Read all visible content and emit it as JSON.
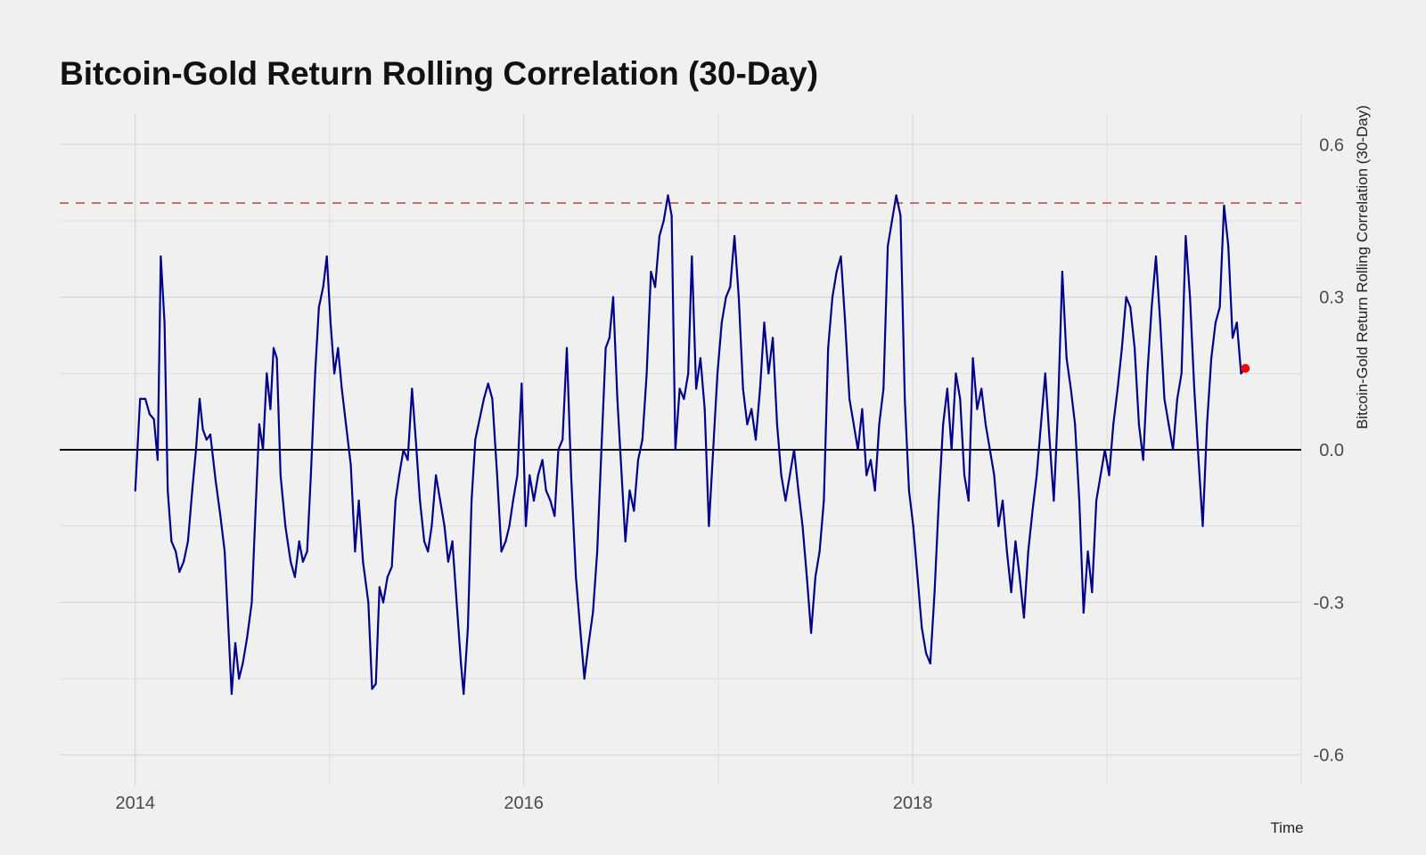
{
  "chart_data": {
    "type": "line",
    "title": "Bitcoin-Gold Return Rolling Correlation (30-Day)",
    "xlabel": "Time",
    "ylabel": "Bitcoin-Gold Return Rolling Correlation (30-Day)",
    "x_ticks": [
      "2014",
      "2016",
      "2018"
    ],
    "y_ticks": [
      "0.6",
      "0.3",
      "0.0",
      "-0.3",
      "-0.6"
    ],
    "y_tick_values": [
      0.6,
      0.3,
      0.0,
      -0.3,
      -0.6
    ],
    "xlim": [
      "2013-08-12",
      "2020-01-01"
    ],
    "ylim": [
      -0.66,
      0.66
    ],
    "grid": true,
    "y_axis_position": "right",
    "reference_lines": [
      {
        "name": "zero",
        "y": 0.0,
        "style": "solid",
        "color": "#000000"
      },
      {
        "name": "max",
        "y": 0.485,
        "style": "dashed",
        "color": "#c0504d"
      }
    ],
    "colors": {
      "line": "#00008b",
      "last_point": "#ff0000",
      "background": "#f0f0f0"
    },
    "series": [
      {
        "points": [
          [
            "2014-01-01",
            -0.08
          ],
          [
            "2014-01-10",
            0.1
          ],
          [
            "2014-01-20",
            0.1
          ],
          [
            "2014-01-28",
            0.07
          ],
          [
            "2014-02-05",
            0.06
          ],
          [
            "2014-02-12",
            -0.02
          ],
          [
            "2014-02-18",
            0.38
          ],
          [
            "2014-02-25",
            0.25
          ],
          [
            "2014-03-03",
            -0.08
          ],
          [
            "2014-03-10",
            -0.18
          ],
          [
            "2014-03-18",
            -0.2
          ],
          [
            "2014-03-25",
            -0.24
          ],
          [
            "2014-04-02",
            -0.22
          ],
          [
            "2014-04-10",
            -0.18
          ],
          [
            "2014-04-18",
            -0.08
          ],
          [
            "2014-04-25",
            0.0
          ],
          [
            "2014-05-02",
            0.1
          ],
          [
            "2014-05-08",
            0.04
          ],
          [
            "2014-05-15",
            0.02
          ],
          [
            "2014-05-22",
            0.03
          ],
          [
            "2014-06-01",
            -0.06
          ],
          [
            "2014-06-10",
            -0.13
          ],
          [
            "2014-06-18",
            -0.2
          ],
          [
            "2014-06-24",
            -0.33
          ],
          [
            "2014-07-01",
            -0.48
          ],
          [
            "2014-07-08",
            -0.38
          ],
          [
            "2014-07-15",
            -0.45
          ],
          [
            "2014-07-22",
            -0.42
          ],
          [
            "2014-07-30",
            -0.37
          ],
          [
            "2014-08-08",
            -0.3
          ],
          [
            "2014-08-15",
            -0.12
          ],
          [
            "2014-08-22",
            0.05
          ],
          [
            "2014-08-29",
            0.0
          ],
          [
            "2014-09-05",
            0.15
          ],
          [
            "2014-09-12",
            0.08
          ],
          [
            "2014-09-18",
            0.2
          ],
          [
            "2014-09-24",
            0.18
          ],
          [
            "2014-10-01",
            -0.05
          ],
          [
            "2014-10-10",
            -0.15
          ],
          [
            "2014-10-20",
            -0.22
          ],
          [
            "2014-10-28",
            -0.25
          ],
          [
            "2014-11-05",
            -0.18
          ],
          [
            "2014-11-12",
            -0.22
          ],
          [
            "2014-11-20",
            -0.2
          ],
          [
            "2014-11-27",
            -0.05
          ],
          [
            "2014-12-05",
            0.15
          ],
          [
            "2014-12-12",
            0.28
          ],
          [
            "2014-12-20",
            0.32
          ],
          [
            "2014-12-27",
            0.38
          ],
          [
            "2015-01-03",
            0.25
          ],
          [
            "2015-01-10",
            0.15
          ],
          [
            "2015-01-17",
            0.2
          ],
          [
            "2015-01-24",
            0.12
          ],
          [
            "2015-02-01",
            0.05
          ],
          [
            "2015-02-10",
            -0.03
          ],
          [
            "2015-02-18",
            -0.2
          ],
          [
            "2015-02-25",
            -0.1
          ],
          [
            "2015-03-05",
            -0.22
          ],
          [
            "2015-03-15",
            -0.3
          ],
          [
            "2015-03-22",
            -0.47
          ],
          [
            "2015-03-29",
            -0.46
          ],
          [
            "2015-04-05",
            -0.27
          ],
          [
            "2015-04-12",
            -0.3
          ],
          [
            "2015-04-20",
            -0.25
          ],
          [
            "2015-04-28",
            -0.23
          ],
          [
            "2015-05-05",
            -0.1
          ],
          [
            "2015-05-12",
            -0.05
          ],
          [
            "2015-05-20",
            0.0
          ],
          [
            "2015-05-28",
            -0.02
          ],
          [
            "2015-06-05",
            0.12
          ],
          [
            "2015-06-12",
            0.02
          ],
          [
            "2015-06-20",
            -0.1
          ],
          [
            "2015-06-28",
            -0.18
          ],
          [
            "2015-07-05",
            -0.2
          ],
          [
            "2015-07-12",
            -0.15
          ],
          [
            "2015-07-20",
            -0.05
          ],
          [
            "2015-07-28",
            -0.1
          ],
          [
            "2015-08-05",
            -0.15
          ],
          [
            "2015-08-12",
            -0.22
          ],
          [
            "2015-08-20",
            -0.18
          ],
          [
            "2015-08-28",
            -0.3
          ],
          [
            "2015-09-05",
            -0.42
          ],
          [
            "2015-09-10",
            -0.48
          ],
          [
            "2015-09-18",
            -0.35
          ],
          [
            "2015-09-25",
            -0.1
          ],
          [
            "2015-10-02",
            0.02
          ],
          [
            "2015-10-10",
            0.06
          ],
          [
            "2015-10-18",
            0.1
          ],
          [
            "2015-10-26",
            0.13
          ],
          [
            "2015-11-03",
            0.1
          ],
          [
            "2015-11-12",
            -0.05
          ],
          [
            "2015-11-20",
            -0.2
          ],
          [
            "2015-11-28",
            -0.18
          ],
          [
            "2015-12-05",
            -0.15
          ],
          [
            "2015-12-12",
            -0.1
          ],
          [
            "2015-12-20",
            -0.05
          ],
          [
            "2015-12-28",
            0.13
          ],
          [
            "2016-01-05",
            -0.15
          ],
          [
            "2016-01-12",
            -0.05
          ],
          [
            "2016-01-20",
            -0.1
          ],
          [
            "2016-01-28",
            -0.05
          ],
          [
            "2016-02-05",
            -0.02
          ],
          [
            "2016-02-12",
            -0.08
          ],
          [
            "2016-02-20",
            -0.1
          ],
          [
            "2016-02-28",
            -0.13
          ],
          [
            "2016-03-06",
            0.0
          ],
          [
            "2016-03-14",
            0.02
          ],
          [
            "2016-03-22",
            0.2
          ],
          [
            "2016-03-30",
            -0.05
          ],
          [
            "2016-04-08",
            -0.25
          ],
          [
            "2016-04-16",
            -0.35
          ],
          [
            "2016-04-24",
            -0.45
          ],
          [
            "2016-05-02",
            -0.38
          ],
          [
            "2016-05-10",
            -0.32
          ],
          [
            "2016-05-18",
            -0.2
          ],
          [
            "2016-05-26",
            0.0
          ],
          [
            "2016-06-03",
            0.2
          ],
          [
            "2016-06-10",
            0.22
          ],
          [
            "2016-06-17",
            0.3
          ],
          [
            "2016-06-25",
            0.1
          ],
          [
            "2016-07-03",
            -0.05
          ],
          [
            "2016-07-10",
            -0.18
          ],
          [
            "2016-07-18",
            -0.08
          ],
          [
            "2016-07-26",
            -0.12
          ],
          [
            "2016-08-03",
            -0.02
          ],
          [
            "2016-08-11",
            0.02
          ],
          [
            "2016-08-19",
            0.15
          ],
          [
            "2016-08-27",
            0.35
          ],
          [
            "2016-09-04",
            0.32
          ],
          [
            "2016-09-12",
            0.42
          ],
          [
            "2016-09-20",
            0.45
          ],
          [
            "2016-09-28",
            0.5
          ],
          [
            "2016-10-05",
            0.46
          ],
          [
            "2016-10-12",
            0.0
          ],
          [
            "2016-10-20",
            0.12
          ],
          [
            "2016-10-28",
            0.1
          ],
          [
            "2016-11-05",
            0.15
          ],
          [
            "2016-11-12",
            0.38
          ],
          [
            "2016-11-20",
            0.12
          ],
          [
            "2016-11-28",
            0.18
          ],
          [
            "2016-12-06",
            0.08
          ],
          [
            "2016-12-14",
            -0.15
          ],
          [
            "2016-12-22",
            0.0
          ],
          [
            "2016-12-30",
            0.15
          ],
          [
            "2017-01-07",
            0.25
          ],
          [
            "2017-01-15",
            0.3
          ],
          [
            "2017-01-23",
            0.32
          ],
          [
            "2017-01-31",
            0.42
          ],
          [
            "2017-02-08",
            0.3
          ],
          [
            "2017-02-16",
            0.12
          ],
          [
            "2017-02-24",
            0.05
          ],
          [
            "2017-03-04",
            0.08
          ],
          [
            "2017-03-12",
            0.02
          ],
          [
            "2017-03-20",
            0.12
          ],
          [
            "2017-03-28",
            0.25
          ],
          [
            "2017-04-05",
            0.15
          ],
          [
            "2017-04-13",
            0.22
          ],
          [
            "2017-04-21",
            0.05
          ],
          [
            "2017-04-29",
            -0.05
          ],
          [
            "2017-05-07",
            -0.1
          ],
          [
            "2017-05-15",
            -0.05
          ],
          [
            "2017-05-23",
            0.0
          ],
          [
            "2017-05-31",
            -0.08
          ],
          [
            "2017-06-08",
            -0.15
          ],
          [
            "2017-06-16",
            -0.25
          ],
          [
            "2017-06-24",
            -0.36
          ],
          [
            "2017-07-02",
            -0.25
          ],
          [
            "2017-07-10",
            -0.2
          ],
          [
            "2017-07-18",
            -0.1
          ],
          [
            "2017-07-26",
            0.2
          ],
          [
            "2017-08-03",
            0.3
          ],
          [
            "2017-08-11",
            0.35
          ],
          [
            "2017-08-19",
            0.38
          ],
          [
            "2017-08-27",
            0.25
          ],
          [
            "2017-09-04",
            0.1
          ],
          [
            "2017-09-12",
            0.05
          ],
          [
            "2017-09-20",
            0.0
          ],
          [
            "2017-09-28",
            0.08
          ],
          [
            "2017-10-06",
            -0.05
          ],
          [
            "2017-10-14",
            -0.02
          ],
          [
            "2017-10-22",
            -0.08
          ],
          [
            "2017-10-30",
            0.05
          ],
          [
            "2017-11-07",
            0.12
          ],
          [
            "2017-11-15",
            0.4
          ],
          [
            "2017-11-23",
            0.45
          ],
          [
            "2017-12-01",
            0.5
          ],
          [
            "2017-12-09",
            0.46
          ],
          [
            "2017-12-17",
            0.1
          ],
          [
            "2017-12-25",
            -0.08
          ],
          [
            "2018-01-02",
            -0.15
          ],
          [
            "2018-01-10",
            -0.25
          ],
          [
            "2018-01-18",
            -0.35
          ],
          [
            "2018-01-26",
            -0.4
          ],
          [
            "2018-02-03",
            -0.42
          ],
          [
            "2018-02-11",
            -0.28
          ],
          [
            "2018-02-19",
            -0.1
          ],
          [
            "2018-02-27",
            0.05
          ],
          [
            "2018-03-07",
            0.12
          ],
          [
            "2018-03-15",
            0.0
          ],
          [
            "2018-03-23",
            0.15
          ],
          [
            "2018-03-31",
            0.1
          ],
          [
            "2018-04-08",
            -0.05
          ],
          [
            "2018-04-16",
            -0.1
          ],
          [
            "2018-04-24",
            0.18
          ],
          [
            "2018-05-02",
            0.08
          ],
          [
            "2018-05-10",
            0.12
          ],
          [
            "2018-05-18",
            0.05
          ],
          [
            "2018-05-26",
            0.0
          ],
          [
            "2018-06-03",
            -0.05
          ],
          [
            "2018-06-11",
            -0.15
          ],
          [
            "2018-06-19",
            -0.1
          ],
          [
            "2018-06-27",
            -0.2
          ],
          [
            "2018-07-05",
            -0.28
          ],
          [
            "2018-07-13",
            -0.18
          ],
          [
            "2018-07-21",
            -0.25
          ],
          [
            "2018-07-29",
            -0.33
          ],
          [
            "2018-08-06",
            -0.2
          ],
          [
            "2018-08-14",
            -0.12
          ],
          [
            "2018-08-22",
            -0.05
          ],
          [
            "2018-08-30",
            0.05
          ],
          [
            "2018-09-07",
            0.15
          ],
          [
            "2018-09-15",
            0.02
          ],
          [
            "2018-09-23",
            -0.1
          ],
          [
            "2018-10-01",
            0.08
          ],
          [
            "2018-10-09",
            0.35
          ],
          [
            "2018-10-17",
            0.18
          ],
          [
            "2018-10-25",
            0.12
          ],
          [
            "2018-11-02",
            0.05
          ],
          [
            "2018-11-10",
            -0.1
          ],
          [
            "2018-11-18",
            -0.32
          ],
          [
            "2018-11-26",
            -0.2
          ],
          [
            "2018-12-04",
            -0.28
          ],
          [
            "2018-12-12",
            -0.1
          ],
          [
            "2018-12-20",
            -0.05
          ],
          [
            "2018-12-28",
            0.0
          ],
          [
            "2019-01-05",
            -0.05
          ],
          [
            "2019-01-13",
            0.05
          ],
          [
            "2019-01-21",
            0.12
          ],
          [
            "2019-01-29",
            0.2
          ],
          [
            "2019-02-06",
            0.3
          ],
          [
            "2019-02-14",
            0.28
          ],
          [
            "2019-02-22",
            0.2
          ],
          [
            "2019-03-02",
            0.05
          ],
          [
            "2019-03-10",
            -0.02
          ],
          [
            "2019-03-18",
            0.15
          ],
          [
            "2019-03-26",
            0.28
          ],
          [
            "2019-04-03",
            0.38
          ],
          [
            "2019-04-11",
            0.25
          ],
          [
            "2019-04-19",
            0.1
          ],
          [
            "2019-04-27",
            0.05
          ],
          [
            "2019-05-05",
            0.0
          ],
          [
            "2019-05-13",
            0.1
          ],
          [
            "2019-05-21",
            0.15
          ],
          [
            "2019-05-29",
            0.42
          ],
          [
            "2019-06-06",
            0.3
          ],
          [
            "2019-06-14",
            0.12
          ],
          [
            "2019-06-22",
            -0.02
          ],
          [
            "2019-06-30",
            -0.15
          ],
          [
            "2019-07-08",
            0.05
          ],
          [
            "2019-07-16",
            0.18
          ],
          [
            "2019-07-24",
            0.25
          ],
          [
            "2019-08-01",
            0.28
          ],
          [
            "2019-08-09",
            0.48
          ],
          [
            "2019-08-17",
            0.4
          ],
          [
            "2019-08-25",
            0.22
          ],
          [
            "2019-09-02",
            0.25
          ],
          [
            "2019-09-10",
            0.15
          ],
          [
            "2019-09-18",
            0.16
          ]
        ]
      }
    ],
    "last_point": {
      "x": "2019-09-18",
      "y": 0.16
    }
  }
}
